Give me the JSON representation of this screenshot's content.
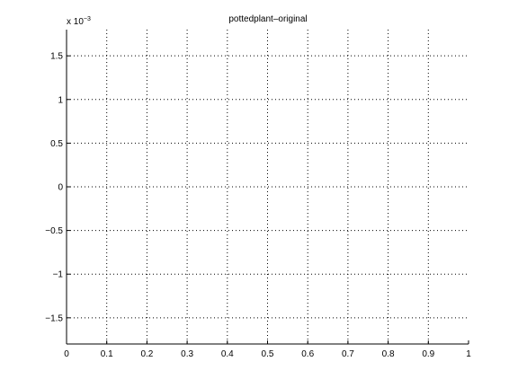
{
  "chart_data": {
    "type": "line",
    "title": "pottedplant–original",
    "xlabel": "",
    "ylabel": "",
    "xlim": [
      0,
      1
    ],
    "ylim": [
      -1.8,
      1.8
    ],
    "xticks": [
      0,
      0.1,
      0.2,
      0.3,
      0.4,
      0.5,
      0.6,
      0.7,
      0.8,
      0.9,
      1
    ],
    "xtick_labels": [
      "0",
      "0.1",
      "0.2",
      "0.3",
      "0.4",
      "0.5",
      "0.6",
      "0.7",
      "0.8",
      "0.9",
      "1"
    ],
    "yticks": [
      -1.5,
      -1,
      -0.5,
      0,
      0.5,
      1,
      1.5
    ],
    "ytick_labels": [
      "−1.5",
      "−1",
      "−0.5",
      "0",
      "0.5",
      "1",
      "1.5"
    ],
    "y_scale_base": "x 10",
    "y_scale_exponent": "−3",
    "grid": true,
    "series": []
  },
  "colors": {
    "axis": "#000000",
    "grid": "#000000",
    "background": "#ffffff"
  }
}
